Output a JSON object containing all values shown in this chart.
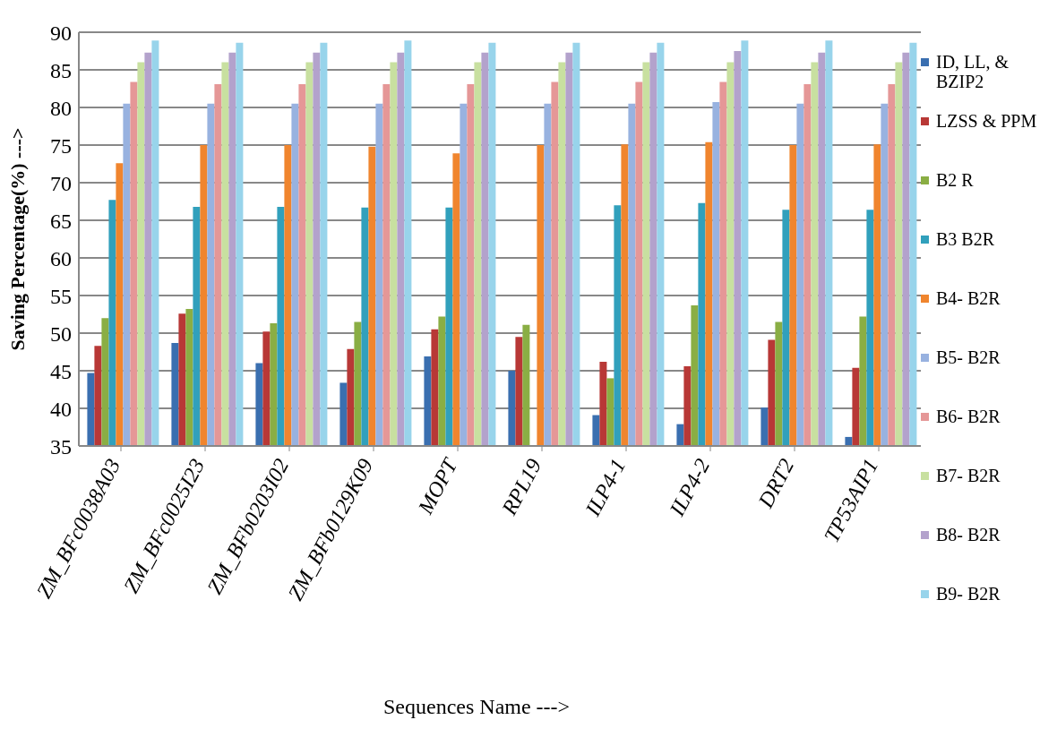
{
  "chart_data": {
    "type": "bar",
    "xlabel": "Sequences Name --->",
    "ylabel": "Saving Percentage(%)  --->",
    "categories": [
      "ZM_BFc0038A03",
      "ZM_BFc0025I23",
      "ZM_BFb0203I02",
      "ZM_BFb0129K09",
      "MOPT",
      "RPL19",
      "ILP4-1",
      "ILP4-2",
      "DRT2",
      "TP53AIP1"
    ],
    "series": [
      {
        "name": "ID, LL, & BZIP2",
        "color": "#3a6fb0",
        "values": [
          44.7,
          48.7,
          46,
          43.4,
          46.9,
          45,
          39.1,
          37.9,
          40.1,
          36.2
        ]
      },
      {
        "name": "LZSS & PPM",
        "color": "#b83836",
        "values": [
          48.3,
          52.6,
          50.2,
          47.9,
          50.5,
          49.5,
          46.2,
          45.6,
          49.1,
          45.4
        ]
      },
      {
        "name": "B2 R",
        "color": "#8aae44",
        "values": [
          52,
          53.2,
          51.3,
          51.5,
          52.2,
          51.1,
          44,
          53.7,
          51.5,
          52.2
        ]
      },
      {
        "name": "B3 B2R",
        "color": "#31a0bc",
        "values": [
          67.7,
          66.8,
          66.8,
          66.7,
          66.7,
          null,
          67,
          67.3,
          66.4,
          66.4
        ]
      },
      {
        "name": "B4- B2R",
        "color": "#f0852e",
        "values": [
          72.6,
          75,
          75,
          74.8,
          73.9,
          75,
          75.1,
          75.4,
          75,
          75.1
        ]
      },
      {
        "name": "B5- B2R",
        "color": "#98b2e0",
        "values": [
          80.5,
          80.5,
          80.5,
          80.5,
          80.5,
          80.5,
          80.5,
          80.7,
          80.5,
          80.5
        ]
      },
      {
        "name": "B6- B2R",
        "color": "#e59797",
        "values": [
          83.4,
          83.1,
          83.1,
          83.1,
          83.1,
          83.4,
          83.4,
          83.4,
          83.1,
          83.1
        ]
      },
      {
        "name": "B7- B2R",
        "color": "#c8e0a0",
        "values": [
          86,
          86,
          86,
          86,
          86,
          86,
          86,
          86,
          86,
          86
        ]
      },
      {
        "name": "B8- B2R",
        "color": "#b3a2cc",
        "values": [
          87.3,
          87.3,
          87.3,
          87.3,
          87.3,
          87.3,
          87.3,
          87.5,
          87.3,
          87.3
        ]
      },
      {
        "name": "B9- B2R",
        "color": "#98d4eb",
        "values": [
          88.9,
          88.6,
          88.6,
          88.9,
          88.6,
          88.6,
          88.6,
          88.9,
          88.9,
          88.6
        ]
      }
    ],
    "ylim": [
      35,
      90
    ],
    "yticks": [
      35,
      40,
      45,
      50,
      55,
      60,
      65,
      70,
      75,
      80,
      85,
      90
    ],
    "grid": "y",
    "legend": "right"
  }
}
